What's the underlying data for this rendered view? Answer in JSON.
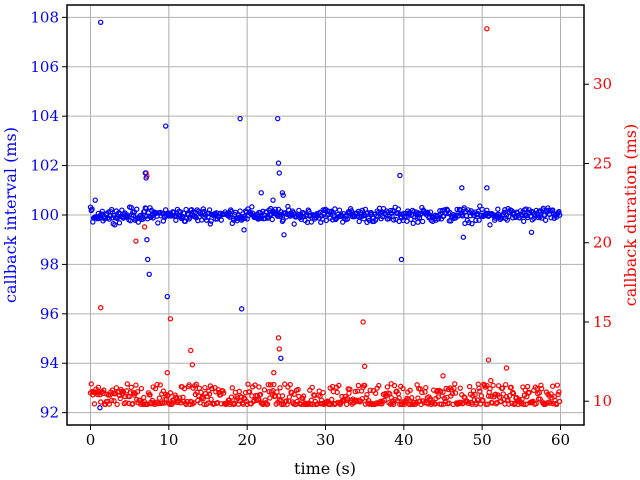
{
  "chart_data": {
    "type": "scatter",
    "xlabel": "time (s)",
    "ylabel_left": "callback interval (ms)",
    "ylabel_right": "callback duration (ms)",
    "xlim": [
      -3,
      63
    ],
    "ylim_left": [
      91.5,
      108.5
    ],
    "ylim_right": [
      8.5,
      35
    ],
    "x_ticks": [
      0,
      10,
      20,
      30,
      40,
      50,
      60
    ],
    "y_left_ticks": [
      92,
      94,
      96,
      98,
      100,
      102,
      104,
      106,
      108
    ],
    "y_right_ticks": [
      10,
      15,
      20,
      25,
      30
    ],
    "grid": true,
    "left_color": "#0000ff",
    "right_color": "#ff0000",
    "series": [
      {
        "axis": "left",
        "color": "#0000ff",
        "outliers": [
          [
            1.3,
            107.8
          ],
          [
            0.6,
            100.6
          ],
          [
            1.2,
            92.2
          ],
          [
            7.0,
            101.7
          ],
          [
            7.1,
            101.5
          ],
          [
            7.2,
            99.0
          ],
          [
            7.3,
            98.2
          ],
          [
            7.5,
            97.6
          ],
          [
            9.6,
            103.6
          ],
          [
            9.8,
            96.7
          ],
          [
            19.1,
            103.9
          ],
          [
            19.3,
            96.2
          ],
          [
            19.6,
            99.4
          ],
          [
            21.8,
            100.9
          ],
          [
            23.3,
            100.6
          ],
          [
            23.9,
            103.9
          ],
          [
            24.0,
            102.1
          ],
          [
            24.1,
            101.7
          ],
          [
            24.3,
            94.2
          ],
          [
            24.5,
            100.9
          ],
          [
            24.6,
            100.8
          ],
          [
            24.7,
            99.2
          ],
          [
            39.5,
            101.6
          ],
          [
            39.7,
            98.2
          ],
          [
            47.4,
            101.1
          ],
          [
            47.6,
            99.1
          ],
          [
            50.6,
            101.1
          ],
          [
            51.0,
            99.6
          ],
          [
            56.3,
            99.3
          ]
        ]
      },
      {
        "axis": "right",
        "color": "#ff0000",
        "outliers": [
          [
            1.3,
            15.9
          ],
          [
            5.8,
            20.1
          ],
          [
            6.9,
            21.0
          ],
          [
            7.1,
            24.4
          ],
          [
            7.2,
            24.2
          ],
          [
            9.8,
            11.8
          ],
          [
            10.2,
            15.2
          ],
          [
            12.8,
            13.2
          ],
          [
            13.0,
            12.3
          ],
          [
            21.5,
            10.9
          ],
          [
            23.4,
            11.8
          ],
          [
            23.9,
            21.8
          ],
          [
            24.0,
            14.0
          ],
          [
            24.1,
            13.3
          ],
          [
            34.8,
            15.0
          ],
          [
            35.0,
            12.2
          ],
          [
            38.4,
            11.1
          ],
          [
            39.9,
            10.8
          ],
          [
            45.0,
            11.6
          ],
          [
            50.6,
            33.5
          ],
          [
            50.8,
            12.6
          ],
          [
            51.1,
            11.3
          ],
          [
            53.1,
            12.1
          ]
        ]
      }
    ]
  }
}
